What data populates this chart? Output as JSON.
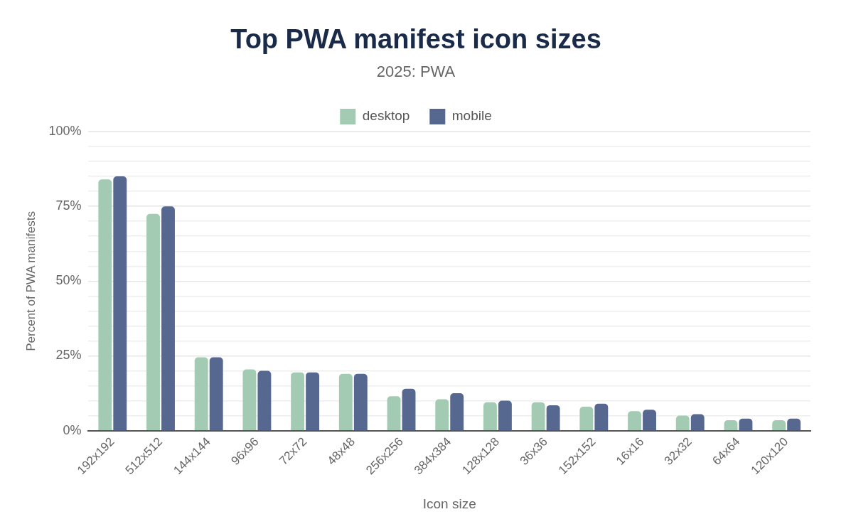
{
  "chart_data": {
    "type": "bar",
    "title": "Top PWA manifest icon sizes",
    "subtitle": "2025: PWA",
    "xlabel": "Icon size",
    "ylabel": "Percent of PWA manifests",
    "categories": [
      "192x192",
      "512x512",
      "144x144",
      "96x96",
      "72x72",
      "48x48",
      "256x256",
      "384x384",
      "128x128",
      "36x36",
      "152x152",
      "16x16",
      "32x32",
      "64x64",
      "120x120"
    ],
    "series": [
      {
        "name": "desktop",
        "color": "#a3cbb4",
        "values": [
          84,
          72.5,
          24.5,
          20.5,
          19.5,
          19,
          11.5,
          10.5,
          9.5,
          9.5,
          8,
          6.5,
          5,
          3.5,
          3.5
        ]
      },
      {
        "name": "mobile",
        "color": "#56688f",
        "values": [
          85,
          75,
          24.5,
          20,
          19.5,
          19,
          14,
          12.5,
          10,
          8.5,
          9,
          7,
          5.5,
          4,
          4
        ]
      }
    ],
    "ylim": [
      0,
      100
    ],
    "yticks": [
      {
        "value": 0,
        "label": "0%"
      },
      {
        "value": 5,
        "label": null
      },
      {
        "value": 10,
        "label": null
      },
      {
        "value": 15,
        "label": null
      },
      {
        "value": 20,
        "label": null
      },
      {
        "value": 25,
        "label": "25%"
      },
      {
        "value": 30,
        "label": null
      },
      {
        "value": 35,
        "label": null
      },
      {
        "value": 40,
        "label": null
      },
      {
        "value": 45,
        "label": null
      },
      {
        "value": 50,
        "label": "50%"
      },
      {
        "value": 55,
        "label": null
      },
      {
        "value": 60,
        "label": null
      },
      {
        "value": 65,
        "label": null
      },
      {
        "value": 70,
        "label": null
      },
      {
        "value": 75,
        "label": "75%"
      },
      {
        "value": 80,
        "label": null
      },
      {
        "value": 85,
        "label": null
      },
      {
        "value": 90,
        "label": null
      },
      {
        "value": 95,
        "label": null
      },
      {
        "value": 100,
        "label": "100%"
      }
    ],
    "grid": "y",
    "legend": "top"
  }
}
